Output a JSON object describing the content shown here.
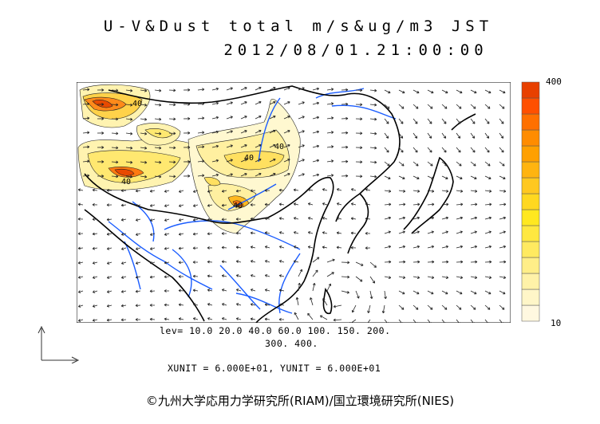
{
  "title": {
    "line1": "U-V&Dust total m/s&ug/m3 JST",
    "line2": "2012/08/01.21:00:00"
  },
  "map": {
    "contour_labels": [
      "40",
      "40",
      "40",
      "40",
      "40"
    ]
  },
  "color_scale": {
    "max_label": "400",
    "min_label": "10",
    "colors": [
      "#fff8e0",
      "#fff6c8",
      "#fff2a8",
      "#ffee88",
      "#ffea60",
      "#ffe840",
      "#ffe820",
      "#ffd820",
      "#ffc820",
      "#ffb410",
      "#ffa000",
      "#ff8c00",
      "#ff7000",
      "#ff5000",
      "#e84000"
    ]
  },
  "levels": {
    "line1": "lev= 10.0 20.0 40.0 60.0 100. 150. 200.",
    "line2": "300. 400."
  },
  "units": "XUNIT = 6.000E+01, YUNIT = 6.000E+01",
  "credit": "©九州大学応用力学研究所(RIAM)/国立環境研究所(NIES)"
}
